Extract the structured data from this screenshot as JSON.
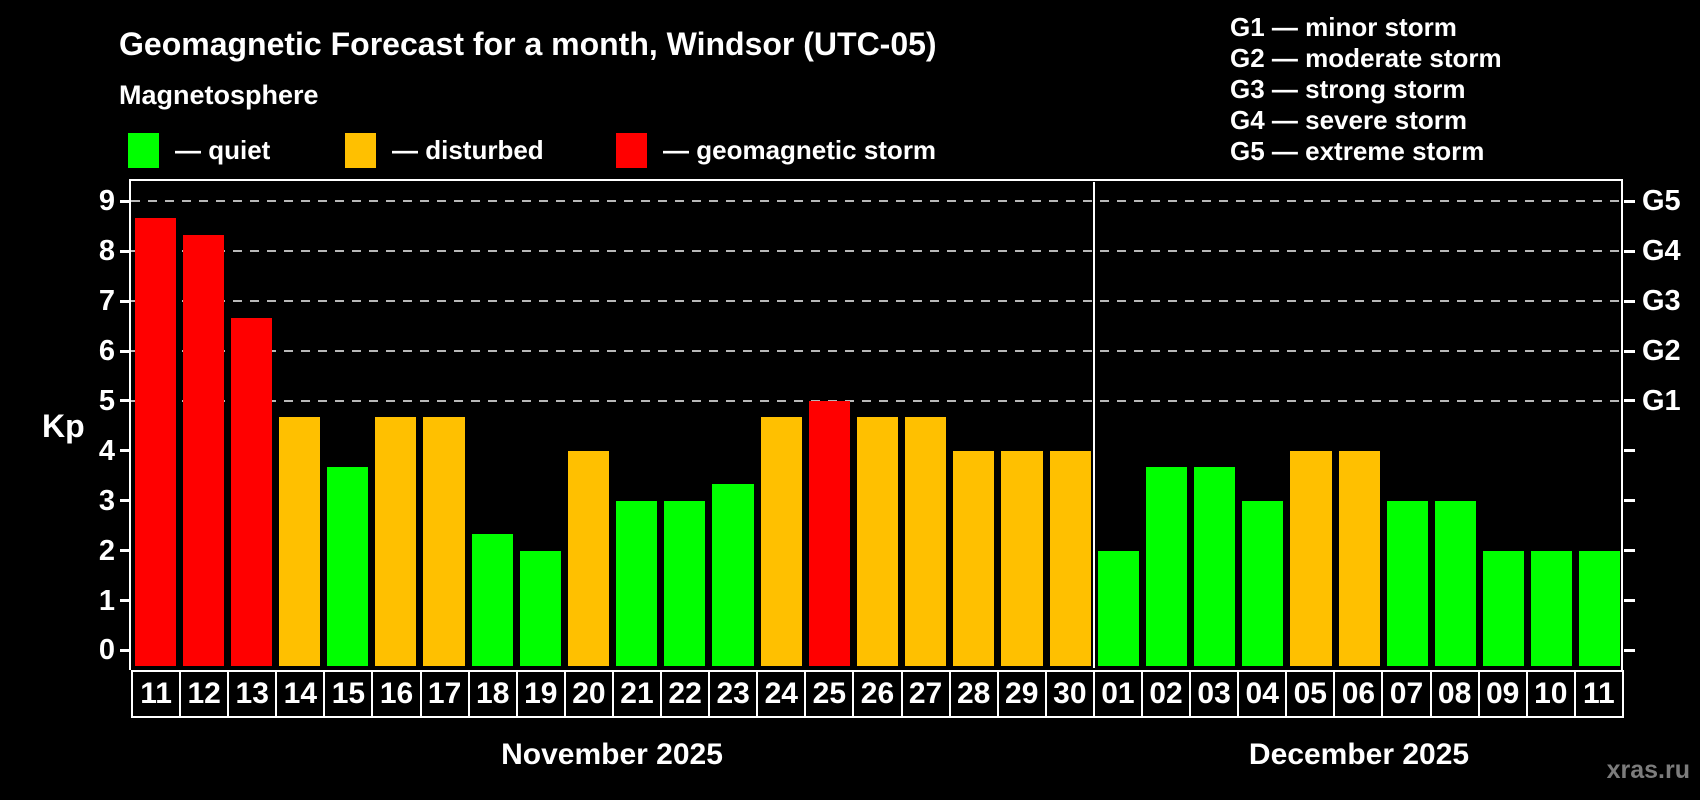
{
  "title": "Geomagnetic Forecast for a month, Windsor (UTC-05)",
  "subtitle": "Magnetosphere",
  "legend": {
    "items": [
      {
        "key": "quiet",
        "label": "— quiet",
        "color": "#00ff00"
      },
      {
        "key": "disturbed",
        "label": "— disturbed",
        "color": "#ffc000"
      },
      {
        "key": "storm",
        "label": "— geomagnetic storm",
        "color": "#ff0000"
      }
    ]
  },
  "storm_scale_legend": [
    "G1 — minor storm",
    "G2 — moderate storm",
    "G3 — strong storm",
    "G4 — severe storm",
    "G5 — extreme storm"
  ],
  "axis": {
    "y_label": "Kp",
    "y_ticks": [
      0,
      1,
      2,
      3,
      4,
      5,
      6,
      7,
      8,
      9
    ],
    "right_labels": [
      {
        "kp": 5,
        "label": "G1"
      },
      {
        "kp": 6,
        "label": "G2"
      },
      {
        "kp": 7,
        "label": "G3"
      },
      {
        "kp": 8,
        "label": "G4"
      },
      {
        "kp": 9,
        "label": "G5"
      }
    ]
  },
  "months": [
    {
      "label": "November 2025",
      "days": 20
    },
    {
      "label": "December 2025",
      "days": 11
    }
  ],
  "watermark": "xras.ru",
  "chart_data": {
    "type": "bar",
    "title": "Geomagnetic Forecast for a month, Windsor (UTC-05)",
    "xlabel": "",
    "ylabel": "Kp",
    "ylim": [
      0,
      9.4
    ],
    "grid": "dashed horizontal at G-storm levels",
    "gridlines_kp": [
      5,
      6,
      7,
      8,
      9
    ],
    "legend_position": "top-left",
    "categories": [
      "11",
      "12",
      "13",
      "14",
      "15",
      "16",
      "17",
      "18",
      "19",
      "20",
      "21",
      "22",
      "23",
      "24",
      "25",
      "26",
      "27",
      "28",
      "29",
      "30",
      "01",
      "02",
      "03",
      "04",
      "05",
      "06",
      "07",
      "08",
      "09",
      "10",
      "11"
    ],
    "values": [
      8.67,
      8.33,
      6.67,
      4.67,
      3.67,
      4.67,
      4.67,
      2.33,
      2.0,
      4.0,
      3.0,
      3.0,
      3.33,
      4.67,
      5.0,
      4.67,
      4.67,
      4.0,
      4.0,
      4.0,
      2.0,
      3.67,
      3.67,
      3.0,
      4.0,
      4.0,
      3.0,
      3.0,
      2.0,
      2.0,
      2.0
    ],
    "statuses": [
      "storm",
      "storm",
      "storm",
      "disturbed",
      "quiet",
      "disturbed",
      "disturbed",
      "quiet",
      "quiet",
      "disturbed",
      "quiet",
      "quiet",
      "quiet",
      "disturbed",
      "storm",
      "disturbed",
      "disturbed",
      "disturbed",
      "disturbed",
      "disturbed",
      "quiet",
      "quiet",
      "quiet",
      "quiet",
      "disturbed",
      "disturbed",
      "quiet",
      "quiet",
      "quiet",
      "quiet",
      "quiet"
    ]
  }
}
